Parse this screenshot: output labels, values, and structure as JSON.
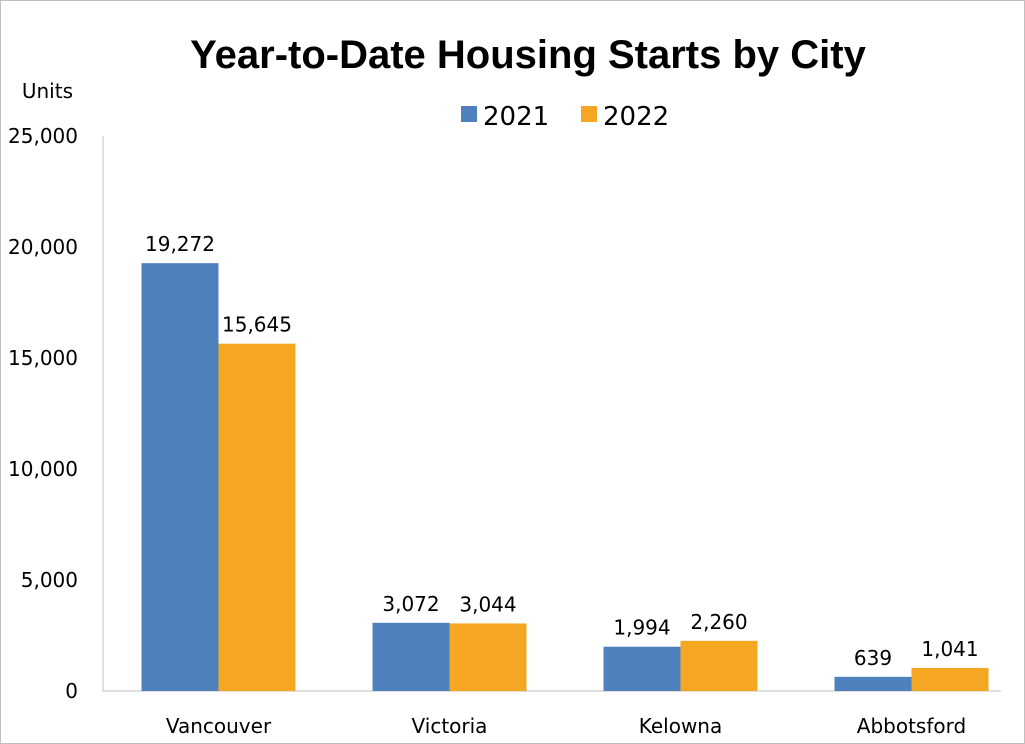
{
  "chart_data": {
    "type": "bar",
    "title": "Year-to-Date Housing Starts by City",
    "ylabel": "Units",
    "xlabel": "",
    "categories": [
      "Vancouver",
      "Victoria",
      "Kelowna",
      "Abbotsford"
    ],
    "series": [
      {
        "name": "2021",
        "color": "#4f81bd",
        "values": [
          19272,
          3072,
          1994,
          639
        ],
        "labels": [
          "19,272",
          "3,072",
          "1,994",
          "639"
        ]
      },
      {
        "name": "2022",
        "color": "#f5a623",
        "values": [
          15645,
          3044,
          2260,
          1041
        ],
        "labels": [
          "15,645",
          "3,044",
          "2,260",
          "1,041"
        ]
      }
    ],
    "ylim": [
      0,
      25000
    ],
    "yticks": [
      0,
      5000,
      10000,
      15000,
      20000,
      25000
    ],
    "ytick_labels": [
      "0",
      "5,000",
      "10,000",
      "15,000",
      "20,000",
      "25,000"
    ],
    "grid": false,
    "legend_position": "top-center"
  }
}
